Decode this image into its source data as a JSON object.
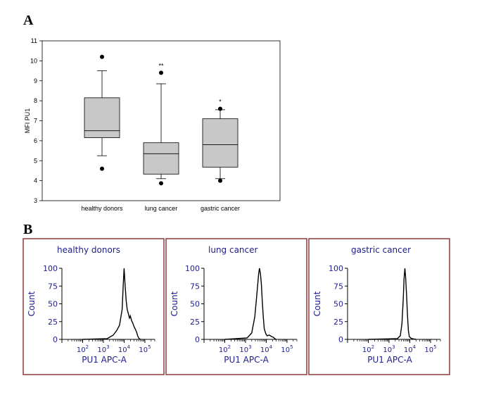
{
  "panel_labels": {
    "a": "A",
    "b": "B"
  },
  "colors": {
    "box_fill": "#c8c8c8",
    "flow_border": "#8b3a3a",
    "flow_text": "#1e1e8c"
  },
  "chart_data": [
    {
      "type": "box",
      "panel": "A",
      "ylabel": "MFI PU1",
      "ylim": [
        3,
        11
      ],
      "yticks": [
        3,
        4,
        5,
        6,
        7,
        8,
        9,
        10,
        11
      ],
      "categories": [
        "healthy donors",
        "lung cancer",
        "gastric cancer"
      ],
      "boxes": [
        {
          "name": "healthy donors",
          "whisker_low": 5.25,
          "q1": 6.15,
          "median": 6.5,
          "q3": 8.15,
          "whisker_high": 9.5,
          "outliers": [
            10.2,
            4.6
          ],
          "annotation": ""
        },
        {
          "name": "lung cancer",
          "whisker_low": 4.1,
          "q1": 4.33,
          "median": 5.35,
          "q3": 5.9,
          "whisker_high": 8.85,
          "outliers": [
            9.4,
            3.87
          ],
          "annotation": "**"
        },
        {
          "name": "gastric cancer",
          "whisker_low": 4.1,
          "q1": 4.68,
          "median": 5.8,
          "q3": 7.1,
          "whisker_high": 7.55,
          "outliers": [
            7.6,
            4.0
          ],
          "annotation": "*"
        }
      ],
      "grid": false
    },
    {
      "type": "line",
      "panel": "B",
      "title": "healthy donors",
      "xlabel": "PU1 APC-A",
      "ylabel": "Count",
      "x_scale": "log",
      "xlim": [
        10,
        300000
      ],
      "ylim": [
        0,
        100
      ],
      "yticks": [
        0,
        25,
        50,
        75,
        100
      ],
      "x": [
        100,
        1500,
        3000,
        4500,
        6000,
        8000,
        9000,
        10000,
        11000,
        12500,
        14000,
        16000,
        18000,
        20000,
        23000,
        26000,
        30000,
        35000,
        40000,
        45000,
        50000,
        60000
      ],
      "values": [
        0,
        1,
        6,
        13,
        20,
        42,
        75,
        100,
        78,
        55,
        42,
        36,
        30,
        33,
        26,
        23,
        18,
        14,
        10,
        5,
        2,
        0
      ]
    },
    {
      "type": "line",
      "panel": "B",
      "title": "lung cancer",
      "xlabel": "PU1 APC-A",
      "ylabel": "Count",
      "x_scale": "log",
      "xlim": [
        10,
        300000
      ],
      "ylim": [
        0,
        100
      ],
      "yticks": [
        0,
        25,
        50,
        75,
        100
      ],
      "x": [
        100,
        1200,
        2000,
        2800,
        3400,
        3900,
        4300,
        4700,
        5200,
        5800,
        6400,
        7200,
        8000,
        9500,
        11000,
        14000,
        18000,
        22000,
        26000,
        30000
      ],
      "values": [
        0,
        2,
        9,
        32,
        58,
        78,
        92,
        100,
        93,
        78,
        55,
        32,
        15,
        8,
        5,
        6,
        4,
        3,
        1,
        0
      ]
    },
    {
      "type": "line",
      "panel": "B",
      "title": "gastric cancer",
      "xlabel": "PU1 APC-A",
      "ylabel": "Count",
      "x_scale": "log",
      "xlim": [
        10,
        300000
      ],
      "ylim": [
        0,
        100
      ],
      "yticks": [
        0,
        25,
        50,
        75,
        100
      ],
      "x": [
        100,
        2500,
        3500,
        4200,
        4800,
        5300,
        5800,
        6300,
        7000,
        7800,
        8600,
        9500,
        11000,
        13000,
        20000
      ],
      "values": [
        0,
        1,
        5,
        22,
        55,
        85,
        100,
        88,
        62,
        32,
        12,
        4,
        2,
        1,
        0
      ]
    }
  ]
}
